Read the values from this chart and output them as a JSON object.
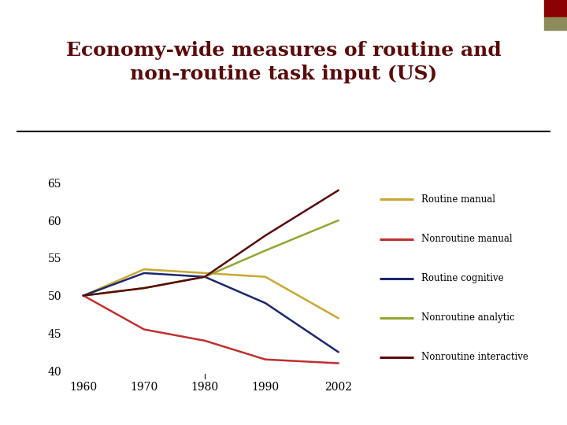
{
  "title_line1": "Economy-wide measures of routine and",
  "title_line2": "non-routine task input (US)",
  "title_fontsize": 18,
  "title_color": "#5b0a0a",
  "background_color": "#ffffff",
  "header_color_olive": "#8b8c5a",
  "header_color_dark_red": "#8b0000",
  "years": [
    1960,
    1970,
    1980,
    1990,
    2002
  ],
  "series": {
    "Routine manual": {
      "color": "#c8a830",
      "values": [
        50.0,
        53.5,
        53.0,
        52.5,
        47.0
      ]
    },
    "Nonroutine manual": {
      "color": "#c03030",
      "values": [
        50.0,
        45.5,
        44.0,
        41.5,
        41.0
      ]
    },
    "Routine cognitive": {
      "color": "#1a2870",
      "values": [
        50.0,
        53.0,
        52.5,
        49.0,
        42.5
      ]
    },
    "Nonroutine analytic": {
      "color": "#90a830",
      "values": [
        50.0,
        51.0,
        52.5,
        56.0,
        60.0
      ]
    },
    "Nonroutine interactive": {
      "color": "#5b0a0a",
      "values": [
        50.0,
        51.0,
        52.5,
        58.0,
        64.0
      ]
    }
  },
  "ylim": [
    39,
    67
  ],
  "yticks": [
    40,
    45,
    50,
    55,
    60,
    65
  ],
  "xlim": [
    1957,
    2007
  ],
  "xticks": [
    1960,
    1970,
    1980,
    1990,
    2002
  ],
  "line_width": 1.8,
  "fig_width": 7.2,
  "fig_height": 5.4,
  "dpi": 100
}
